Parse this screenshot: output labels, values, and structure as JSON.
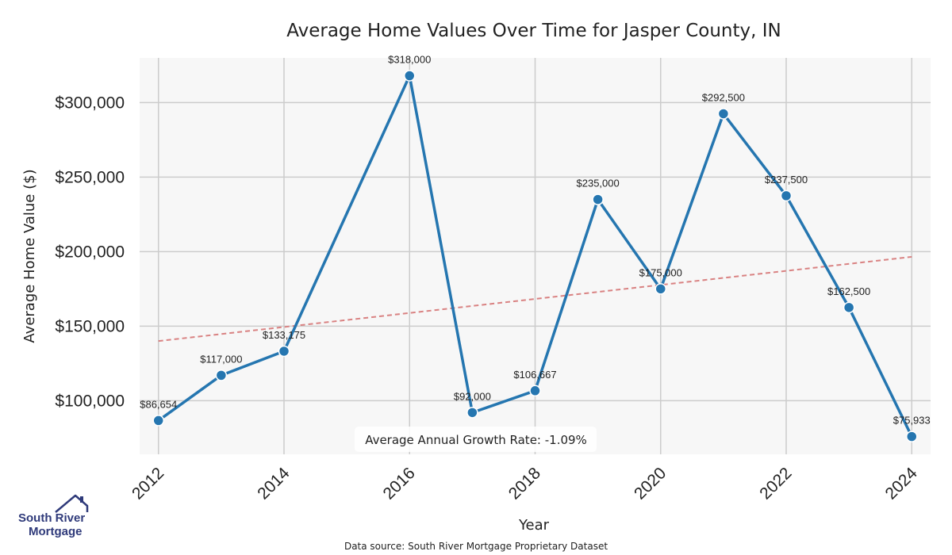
{
  "chart_data": {
    "type": "line",
    "title": "Average Home Values Over Time for Jasper County, IN",
    "xlabel": "Year",
    "ylabel": "Average Home Value ($)",
    "x": [
      2012,
      2013,
      2014,
      2016,
      2017,
      2018,
      2019,
      2020,
      2021,
      2022,
      2023,
      2024
    ],
    "series": [
      {
        "values": [
          86654,
          117000,
          133175,
          318000,
          92000,
          106667,
          235000,
          175000,
          292500,
          237500,
          162500,
          75933
        ],
        "labels": [
          "$86,654",
          "$117,000",
          "$133,175",
          "$318,000",
          "$92,000",
          "$106,667",
          "$235,000",
          "$175,000",
          "$292,500",
          "$237,500",
          "$162,500",
          "$75,933"
        ],
        "color": "#2576b0"
      }
    ],
    "trend": {
      "x": [
        2012,
        2024
      ],
      "values": [
        140000,
        196500
      ],
      "color": "#d98282",
      "style": "dashed"
    },
    "xticks": [
      2012,
      2014,
      2016,
      2018,
      2020,
      2022,
      2024
    ],
    "xtick_labels": [
      "2012",
      "2014",
      "2016",
      "2018",
      "2020",
      "2022",
      "2024"
    ],
    "yticks": [
      100000,
      150000,
      200000,
      250000,
      300000
    ],
    "ytick_labels": [
      "$100,000",
      "$150,000",
      "$200,000",
      "$250,000",
      "$300,000"
    ],
    "xlim": [
      2011.7,
      2024.3
    ],
    "ylim": [
      64000,
      330000
    ],
    "grid": true,
    "annotation": "Average Annual Growth Rate: -1.09%"
  },
  "footer": {
    "source": "Data source: South River Mortgage Proprietary Dataset",
    "logo_line1": "South River",
    "logo_line2": "Mortgage"
  }
}
